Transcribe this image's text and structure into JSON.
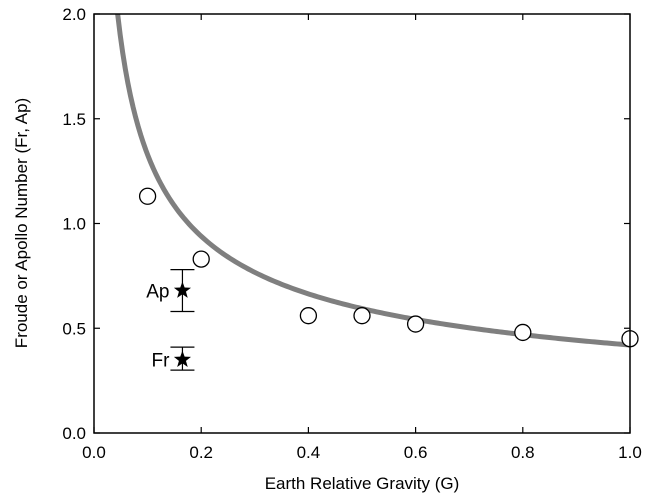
{
  "chart_data": {
    "type": "scatter",
    "xlabel": "Earth Relative Gravity (G)",
    "ylabel": "Froude or Apollo Number (Fr, Ap)",
    "xlim": [
      0,
      1.0
    ],
    "ylim": [
      0,
      2.0
    ],
    "x_ticks": [
      "0.0",
      "0.2",
      "0.4",
      "0.6",
      "0.8",
      "1.0"
    ],
    "y_ticks": [
      "0.0",
      "0.5",
      "1.0",
      "1.5",
      "2.0"
    ],
    "grid": false,
    "series": [
      {
        "marker": "open-circle",
        "x": [
          0.1,
          0.2,
          0.4,
          0.5,
          0.6,
          0.8,
          1.0
        ],
        "y": [
          1.13,
          0.83,
          0.56,
          0.56,
          0.52,
          0.48,
          0.45
        ]
      }
    ],
    "fit_curve": {
      "equation": "y = 0.42 / sqrt(x)",
      "x_range": [
        0.0441,
        1.0
      ],
      "color": "#7f7f7f"
    },
    "star_points": [
      {
        "label": "Ap",
        "x": 0.165,
        "y": 0.68,
        "error_low": 0.58,
        "error_high": 0.78
      },
      {
        "label": "Fr",
        "x": 0.165,
        "y": 0.35,
        "error_low": 0.3,
        "error_high": 0.41
      }
    ]
  }
}
